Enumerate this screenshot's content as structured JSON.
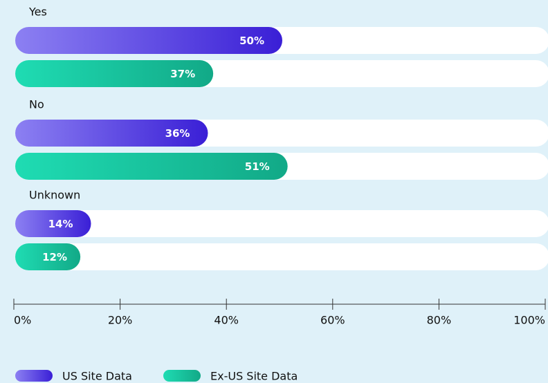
{
  "chart_data": {
    "type": "bar",
    "orientation": "horizontal",
    "categories": [
      "Yes",
      "No",
      "Unknown"
    ],
    "series": [
      {
        "name": "US Site Data",
        "color": "#3a1fd6",
        "values": [
          50,
          36,
          14
        ],
        "value_labels": [
          "50%",
          "36%",
          "14%"
        ]
      },
      {
        "name": "Ex-US Site Data",
        "color": "#12a987",
        "values": [
          37,
          51,
          12
        ],
        "value_labels": [
          "37%",
          "51%",
          "12%"
        ]
      }
    ],
    "xlim": [
      0,
      100
    ],
    "xticks": [
      {
        "value": 0,
        "label": "0%"
      },
      {
        "value": 20,
        "label": "20%"
      },
      {
        "value": 40,
        "label": "40%"
      },
      {
        "value": 60,
        "label": "60%"
      },
      {
        "value": 80,
        "label": "80%"
      },
      {
        "value": 100,
        "label": "100%"
      }
    ]
  }
}
